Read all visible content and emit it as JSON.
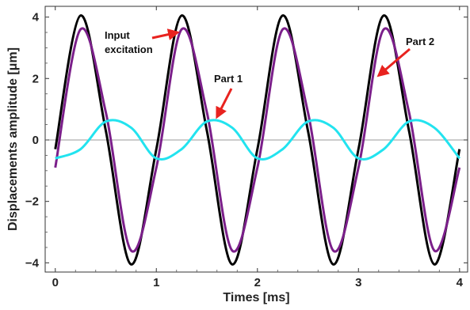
{
  "chart_data": {
    "type": "line",
    "title": "",
    "xlabel": "Times [ms]",
    "ylabel": "Displacements  amplitude [μm]",
    "xlim": [
      -0.1,
      4.08
    ],
    "ylim": [
      -4.3,
      4.35
    ],
    "x_ticks": [
      0,
      1,
      2,
      3,
      4
    ],
    "y_ticks": [
      -4,
      -2,
      0,
      2,
      4
    ],
    "x_tick_labels": [
      "0",
      "1",
      "2",
      "3",
      "4"
    ],
    "y_tick_labels": [
      "−4",
      "−2",
      "0",
      "2",
      "4"
    ],
    "grid": false,
    "zero_line": true,
    "x": [
      0,
      0.25,
      0.5,
      0.75,
      1,
      1.25,
      1.5,
      1.75,
      2,
      2.25,
      2.5,
      2.75,
      3,
      3.25,
      3.5,
      3.75,
      4
    ],
    "series": [
      {
        "name": "Input excitation",
        "color": "#000000",
        "values": [
          -0.3,
          4.05,
          0.3,
          -4.05,
          -0.3,
          4.05,
          0.3,
          -4.05,
          -0.3,
          4.05,
          0.3,
          -4.05,
          -0.3,
          4.05,
          0.3,
          -4.05,
          -0.3
        ]
      },
      {
        "name": "Part 2",
        "color": "#7b1f8a",
        "values": [
          -0.9,
          3.6,
          0.9,
          -3.6,
          -0.9,
          3.6,
          0.9,
          -3.6,
          -0.9,
          3.6,
          0.9,
          -3.6,
          -0.9,
          3.6,
          0.9,
          -3.6,
          -0.9
        ]
      },
      {
        "name": "Part 1",
        "color": "#22e3ef",
        "values": [
          -0.6,
          -0.3,
          0.6,
          0.4,
          -0.6,
          -0.3,
          0.6,
          0.4,
          -0.6,
          -0.3,
          0.6,
          0.4,
          -0.6,
          -0.3,
          0.6,
          0.4,
          -0.6
        ]
      }
    ],
    "annotations": [
      {
        "text": "Input\nexcitation",
        "target_series": "Input excitation",
        "arrow_to": [
          1.21,
          3.5
        ],
        "arrow_color": "#e8231f"
      },
      {
        "text": "Part 1",
        "target_series": "Part 1",
        "arrow_to": [
          1.6,
          0.75
        ],
        "arrow_color": "#e8231f"
      },
      {
        "text": "Part 2",
        "target_series": "Part 2",
        "arrow_to": [
          3.2,
          2.1
        ],
        "arrow_color": "#e8231f"
      }
    ]
  }
}
